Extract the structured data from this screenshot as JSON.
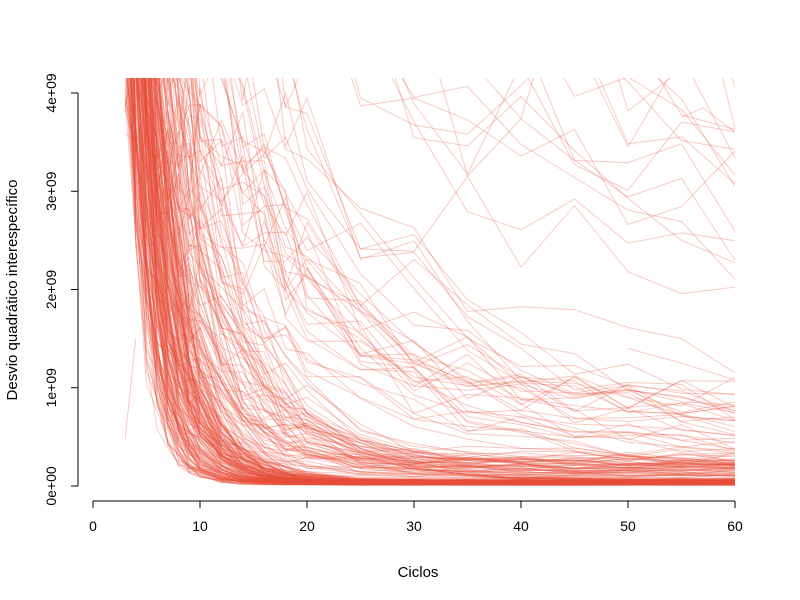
{
  "chart_data": {
    "type": "line",
    "title": "",
    "xlabel": "Ciclos",
    "ylabel": "Desvio quadrático interespecífico",
    "xlim": [
      0,
      60
    ],
    "ylim": [
      0,
      4000000000
    ],
    "x_ticks": [
      0,
      10,
      20,
      30,
      40,
      50,
      60
    ],
    "x_tick_labels": [
      "0",
      "10",
      "20",
      "30",
      "40",
      "50",
      "60"
    ],
    "y_ticks": [
      0,
      1000000000,
      2000000000,
      3000000000,
      4000000000
    ],
    "y_tick_labels": [
      "0e+00",
      "1e+09",
      "2e+09",
      "3e+09",
      "4e+09"
    ],
    "grid": false,
    "legend": "none",
    "line_color": "#e8503a",
    "line_opacity": 0.3,
    "x": [
      3,
      4,
      5,
      6,
      7,
      8,
      9,
      10,
      12,
      14,
      16,
      18,
      20,
      25,
      30,
      35,
      40,
      45,
      50,
      55,
      60
    ],
    "series_count": 300,
    "series_profiles": [
      {
        "share": 0.55,
        "x_start": 3,
        "start_value": 4200000000,
        "decay_cycles": 2.5,
        "final_value": 30000000
      },
      {
        "share": 0.25,
        "x_start": 3,
        "start_value": 4200000000,
        "decay_cycles": 5.0,
        "final_value": 150000000
      },
      {
        "share": 0.12,
        "x_start": 3,
        "start_value": 4200000000,
        "decay_cycles": 12.0,
        "final_value": 500000000
      },
      {
        "share": 0.08,
        "x_start": 3,
        "start_value": 4200000000,
        "decay_cycles": 40.0,
        "final_value": 2500000000
      }
    ],
    "notable_series": [
      {
        "x": [
          55,
          57,
          60
        ],
        "values": [
          3750000000,
          3850000000,
          3600000000
        ]
      },
      {
        "x": [
          50,
          55,
          60
        ],
        "values": [
          1400000000,
          1250000000,
          1080000000
        ]
      },
      {
        "x": [
          3,
          4
        ],
        "values": [
          480000000,
          1500000000
        ]
      }
    ]
  }
}
